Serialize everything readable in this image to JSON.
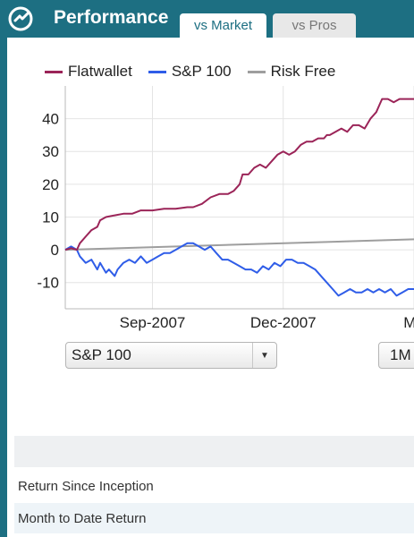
{
  "header": {
    "title": "Performance",
    "tabs": [
      {
        "label": "vs Market",
        "active": true
      },
      {
        "label": "vs Pros",
        "active": false
      }
    ],
    "background_color": "#1d6f82"
  },
  "chart_data": {
    "type": "line",
    "series": [
      {
        "name": "Flatwallet",
        "color": "#9b2458",
        "points": [
          [
            0,
            0
          ],
          [
            2,
            0.5
          ],
          [
            4,
            0
          ],
          [
            5,
            2
          ],
          [
            7,
            4
          ],
          [
            9,
            6
          ],
          [
            11,
            7
          ],
          [
            12,
            9
          ],
          [
            14,
            10
          ],
          [
            17,
            10.5
          ],
          [
            20,
            11
          ],
          [
            23,
            11
          ],
          [
            26,
            12
          ],
          [
            30,
            12
          ],
          [
            34,
            12.5
          ],
          [
            38,
            12.5
          ],
          [
            42,
            13
          ],
          [
            44,
            13
          ],
          [
            47,
            14
          ],
          [
            50,
            16
          ],
          [
            53,
            17
          ],
          [
            56,
            17
          ],
          [
            58,
            18
          ],
          [
            60,
            20
          ],
          [
            61,
            23
          ],
          [
            63,
            23
          ],
          [
            65,
            25
          ],
          [
            67,
            26
          ],
          [
            69,
            25
          ],
          [
            71,
            27
          ],
          [
            73,
            29
          ],
          [
            75,
            30
          ],
          [
            77,
            29
          ],
          [
            79,
            30
          ],
          [
            81,
            32
          ],
          [
            83,
            33
          ],
          [
            85,
            33
          ],
          [
            87,
            34
          ],
          [
            89,
            34
          ],
          [
            90,
            35
          ],
          [
            91,
            35
          ],
          [
            93,
            36
          ],
          [
            95,
            37
          ],
          [
            97,
            36
          ],
          [
            99,
            38
          ],
          [
            101,
            38
          ],
          [
            103,
            37
          ],
          [
            105,
            40
          ],
          [
            107,
            42
          ],
          [
            108,
            44
          ],
          [
            109,
            46
          ],
          [
            111,
            46
          ],
          [
            113,
            45
          ],
          [
            115,
            46
          ],
          [
            117,
            46
          ],
          [
            119,
            46
          ],
          [
            120,
            46
          ]
        ]
      },
      {
        "name": "S&P 100",
        "color": "#2f5de8",
        "points": [
          [
            0,
            0
          ],
          [
            2,
            1
          ],
          [
            4,
            0
          ],
          [
            5,
            -2
          ],
          [
            7,
            -4
          ],
          [
            9,
            -3
          ],
          [
            11,
            -6
          ],
          [
            12,
            -4
          ],
          [
            14,
            -7
          ],
          [
            15,
            -6
          ],
          [
            17,
            -8
          ],
          [
            18,
            -6
          ],
          [
            20,
            -4
          ],
          [
            22,
            -3
          ],
          [
            24,
            -4
          ],
          [
            26,
            -2
          ],
          [
            28,
            -4
          ],
          [
            30,
            -3
          ],
          [
            32,
            -2
          ],
          [
            34,
            -1
          ],
          [
            36,
            -1
          ],
          [
            38,
            0
          ],
          [
            40,
            1
          ],
          [
            42,
            2
          ],
          [
            44,
            2
          ],
          [
            46,
            1
          ],
          [
            48,
            0
          ],
          [
            50,
            1
          ],
          [
            52,
            -1
          ],
          [
            54,
            -3
          ],
          [
            56,
            -3
          ],
          [
            58,
            -4
          ],
          [
            60,
            -5
          ],
          [
            62,
            -6
          ],
          [
            64,
            -6
          ],
          [
            66,
            -7
          ],
          [
            68,
            -5
          ],
          [
            70,
            -6
          ],
          [
            72,
            -4
          ],
          [
            74,
            -5
          ],
          [
            76,
            -3
          ],
          [
            78,
            -3
          ],
          [
            80,
            -4
          ],
          [
            82,
            -4
          ],
          [
            84,
            -5
          ],
          [
            86,
            -6
          ],
          [
            88,
            -8
          ],
          [
            90,
            -10
          ],
          [
            92,
            -12
          ],
          [
            94,
            -14
          ],
          [
            96,
            -13
          ],
          [
            98,
            -12
          ],
          [
            100,
            -13
          ],
          [
            102,
            -13
          ],
          [
            104,
            -12
          ],
          [
            106,
            -13
          ],
          [
            108,
            -12
          ],
          [
            110,
            -13
          ],
          [
            112,
            -12
          ],
          [
            114,
            -14
          ],
          [
            116,
            -13
          ],
          [
            118,
            -12
          ],
          [
            120,
            -12
          ]
        ]
      },
      {
        "name": "Risk Free",
        "color": "#9e9e9e",
        "points": [
          [
            0,
            0
          ],
          [
            120,
            3.2
          ]
        ]
      }
    ],
    "x_ticks": [
      {
        "label": "Sep-2007",
        "x": 30
      },
      {
        "label": "Dec-2007",
        "x": 75
      },
      {
        "label": "Ma",
        "x": 120
      }
    ],
    "y_ticks": [
      -10,
      0,
      10,
      20,
      30,
      40
    ],
    "xlim": [
      0,
      120
    ],
    "ylim": [
      -18,
      50
    ],
    "legend_placement": "top",
    "grid": true
  },
  "controls": {
    "benchmark_select": {
      "value": "S&P 100"
    },
    "range_button": {
      "label": "1M"
    }
  },
  "table": {
    "rows": [
      {
        "label": "Return Since Inception"
      },
      {
        "label": "Month to Date Return"
      }
    ]
  }
}
